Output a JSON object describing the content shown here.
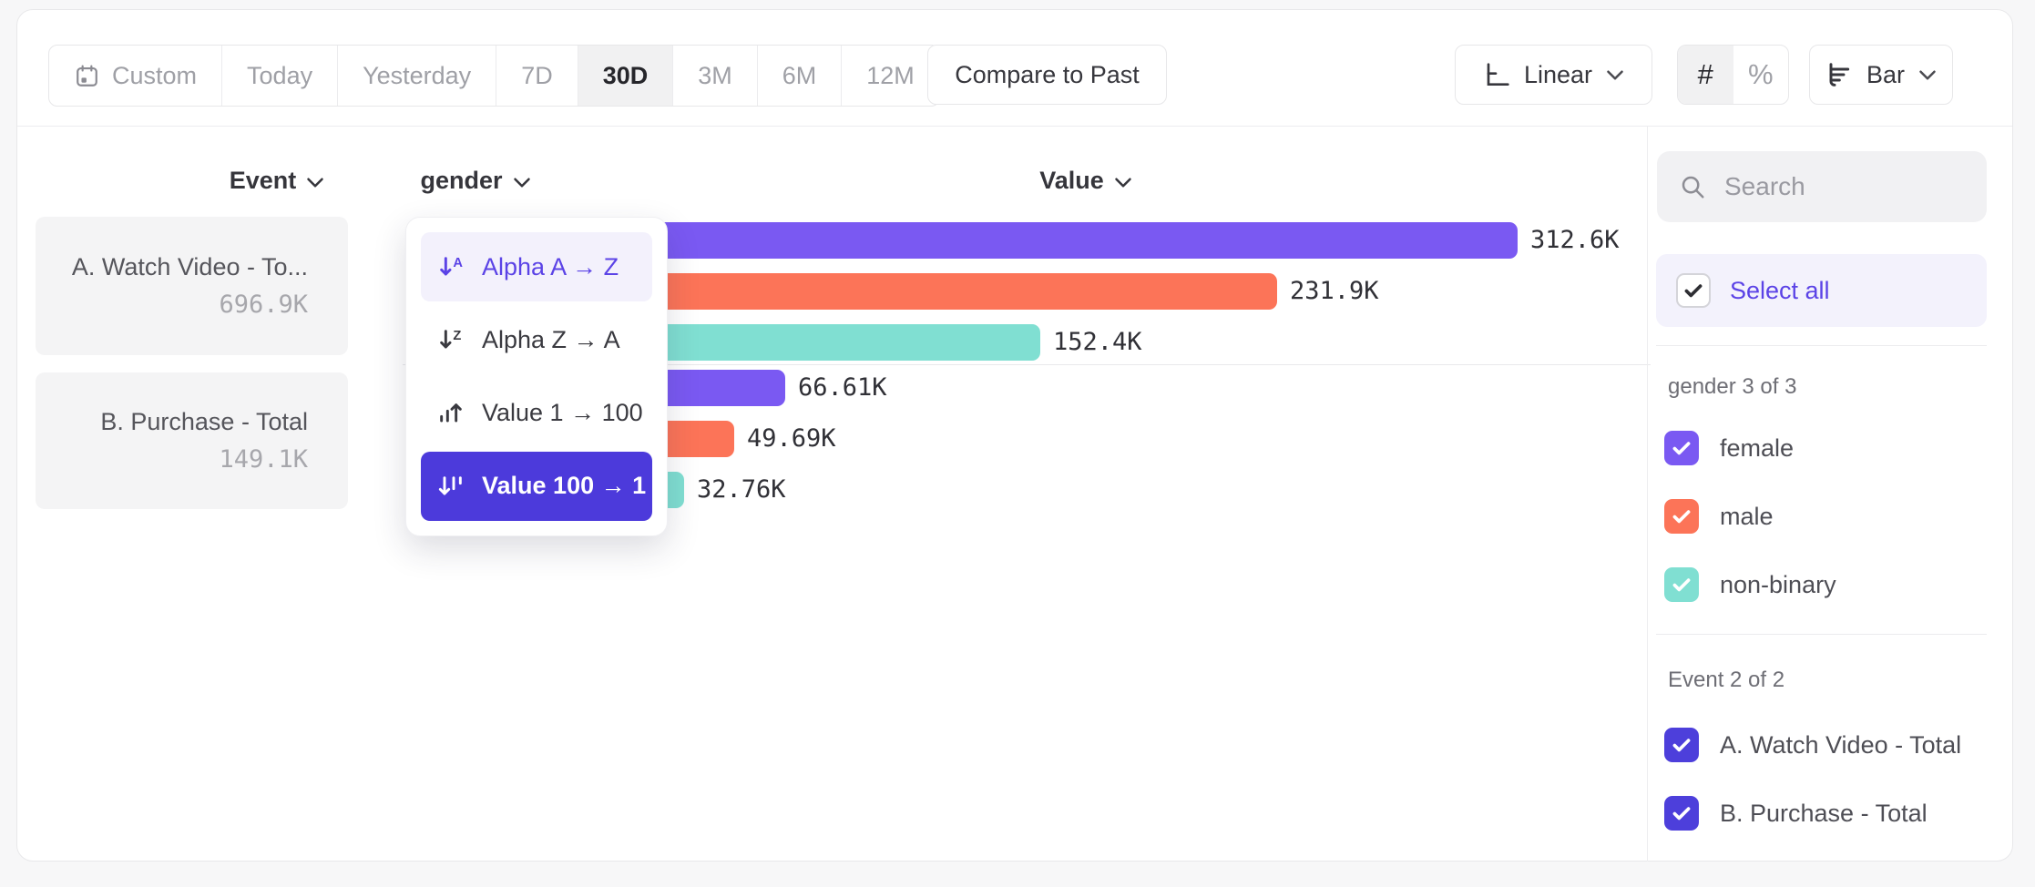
{
  "toolbar": {
    "date_ranges": [
      {
        "label": "Custom",
        "icon": "calendar-icon",
        "selected": false
      },
      {
        "label": "Today",
        "selected": false
      },
      {
        "label": "Yesterday",
        "selected": false
      },
      {
        "label": "7D",
        "selected": false
      },
      {
        "label": "30D",
        "selected": true
      },
      {
        "label": "3M",
        "selected": false
      },
      {
        "label": "6M",
        "selected": false
      },
      {
        "label": "12M",
        "selected": false
      }
    ],
    "compare_button": "Compare to Past",
    "scale_button": {
      "label": "Linear",
      "icon": "axis-icon"
    },
    "value_format": {
      "options": [
        "#",
        "%"
      ],
      "selected": "#"
    },
    "chart_type_button": {
      "label": "Bar",
      "icon": "bar-chart-icon"
    }
  },
  "chart": {
    "column_headers": {
      "event": "Event",
      "breakdown": "gender",
      "value": "Value"
    },
    "event_totals": [
      {
        "name": "A. Watch Video - To...",
        "value": "696.9K"
      },
      {
        "name": "B. Purchase - Total",
        "value": "149.1K"
      }
    ]
  },
  "chart_data": {
    "type": "bar",
    "orientation": "horizontal",
    "value_axis_label": "Value",
    "groups": [
      "A. Watch Video - Total",
      "B. Purchase - Total"
    ],
    "categories": [
      "female",
      "male",
      "non-binary"
    ],
    "series": [
      {
        "group": "A. Watch Video - Total",
        "points": [
          {
            "category": "female",
            "value": 312600,
            "label": "312.6K",
            "color": "#7a59f2"
          },
          {
            "category": "male",
            "value": 231900,
            "label": "231.9K",
            "color": "#fc7458"
          },
          {
            "category": "non-binary",
            "value": 152400,
            "label": "152.4K",
            "color": "#80dfd2"
          }
        ]
      },
      {
        "group": "B. Purchase - Total",
        "points": [
          {
            "category": "female",
            "value": 66610,
            "label": "66.61K",
            "color": "#7a59f2"
          },
          {
            "category": "male",
            "value": 49690,
            "label": "49.69K",
            "color": "#fc7458"
          },
          {
            "category": "non-binary",
            "value": 32760,
            "label": "32.76K",
            "color": "#80dfd2"
          }
        ]
      }
    ]
  },
  "sort_menu": {
    "items": [
      {
        "label": "Alpha A → Z",
        "icon": "sort-alpha-asc-icon",
        "state": "hover"
      },
      {
        "label": "Alpha Z → A",
        "icon": "sort-alpha-desc-icon",
        "state": "normal"
      },
      {
        "label": "Value 1 → 100",
        "icon": "sort-value-asc-icon",
        "state": "normal"
      },
      {
        "label": "Value 100 → 1",
        "icon": "sort-value-desc-icon",
        "state": "selected"
      }
    ]
  },
  "sidebar": {
    "search_placeholder": "Search",
    "search_value": "",
    "select_all_label": "Select all",
    "sections": [
      {
        "title": "gender 3 of 3",
        "items": [
          {
            "label": "female",
            "checked": true,
            "color": "#7a59f2"
          },
          {
            "label": "male",
            "checked": true,
            "color": "#fc7458"
          },
          {
            "label": "non-binary",
            "checked": true,
            "color": "#80dfd2"
          }
        ]
      },
      {
        "title": "Event 2 of 2",
        "items": [
          {
            "label": "A. Watch Video - Total",
            "checked": true,
            "color": "#4d3fdb"
          },
          {
            "label": "B. Purchase - Total",
            "checked": true,
            "color": "#4d3fdb"
          }
        ]
      }
    ]
  },
  "colors": {
    "series_female": "#7a59f2",
    "series_male": "#fc7458",
    "series_nonbinary": "#80dfd2",
    "accent_purple": "#5b43e6",
    "selected_menu_bg": "#4c3adb"
  }
}
